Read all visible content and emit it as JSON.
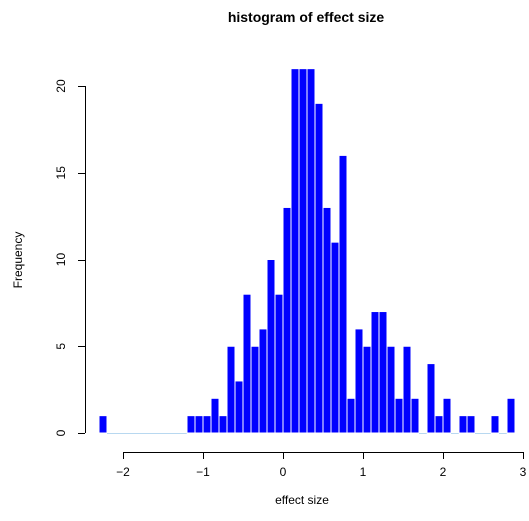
{
  "chart_data": {
    "type": "bar",
    "title": "histogram of effect size",
    "xlabel": "effect size",
    "ylabel": "Frequency",
    "bin_width": 0.1,
    "xlim": [
      -2.3,
      2.9
    ],
    "ylim": [
      0,
      21
    ],
    "x_ticks": [
      -2,
      -1,
      0,
      1,
      2,
      3
    ],
    "y_ticks": [
      0,
      5,
      10,
      15,
      20
    ],
    "bar_color": "#0000ff",
    "bar_border_color": "#ffffff",
    "bins": [
      {
        "x0": -2.3,
        "x1": -2.2,
        "count": 1
      },
      {
        "x0": -2.2,
        "x1": -2.1,
        "count": 0
      },
      {
        "x0": -2.1,
        "x1": -2.0,
        "count": 0
      },
      {
        "x0": -2.0,
        "x1": -1.9,
        "count": 0
      },
      {
        "x0": -1.9,
        "x1": -1.8,
        "count": 0
      },
      {
        "x0": -1.8,
        "x1": -1.7,
        "count": 0
      },
      {
        "x0": -1.7,
        "x1": -1.6,
        "count": 0
      },
      {
        "x0": -1.6,
        "x1": -1.5,
        "count": 0
      },
      {
        "x0": -1.5,
        "x1": -1.4,
        "count": 0
      },
      {
        "x0": -1.4,
        "x1": -1.3,
        "count": 0
      },
      {
        "x0": -1.3,
        "x1": -1.2,
        "count": 0
      },
      {
        "x0": -1.2,
        "x1": -1.1,
        "count": 1
      },
      {
        "x0": -1.1,
        "x1": -1.0,
        "count": 1
      },
      {
        "x0": -1.0,
        "x1": -0.9,
        "count": 1
      },
      {
        "x0": -0.9,
        "x1": -0.8,
        "count": 2
      },
      {
        "x0": -0.8,
        "x1": -0.7,
        "count": 1
      },
      {
        "x0": -0.7,
        "x1": -0.6,
        "count": 5
      },
      {
        "x0": -0.6,
        "x1": -0.5,
        "count": 3
      },
      {
        "x0": -0.5,
        "x1": -0.4,
        "count": 8
      },
      {
        "x0": -0.4,
        "x1": -0.3,
        "count": 5
      },
      {
        "x0": -0.3,
        "x1": -0.2,
        "count": 6
      },
      {
        "x0": -0.2,
        "x1": -0.1,
        "count": 10
      },
      {
        "x0": -0.1,
        "x1": 0.0,
        "count": 8
      },
      {
        "x0": 0.0,
        "x1": 0.1,
        "count": 13
      },
      {
        "x0": 0.1,
        "x1": 0.2,
        "count": 21
      },
      {
        "x0": 0.2,
        "x1": 0.3,
        "count": 21
      },
      {
        "x0": 0.3,
        "x1": 0.4,
        "count": 21
      },
      {
        "x0": 0.4,
        "x1": 0.5,
        "count": 19
      },
      {
        "x0": 0.5,
        "x1": 0.6,
        "count": 13
      },
      {
        "x0": 0.6,
        "x1": 0.7,
        "count": 11
      },
      {
        "x0": 0.7,
        "x1": 0.8,
        "count": 16
      },
      {
        "x0": 0.8,
        "x1": 0.9,
        "count": 2
      },
      {
        "x0": 0.9,
        "x1": 1.0,
        "count": 6
      },
      {
        "x0": 1.0,
        "x1": 1.1,
        "count": 5
      },
      {
        "x0": 1.1,
        "x1": 1.2,
        "count": 7
      },
      {
        "x0": 1.2,
        "x1": 1.3,
        "count": 7
      },
      {
        "x0": 1.3,
        "x1": 1.4,
        "count": 5
      },
      {
        "x0": 1.4,
        "x1": 1.5,
        "count": 2
      },
      {
        "x0": 1.5,
        "x1": 1.6,
        "count": 5
      },
      {
        "x0": 1.6,
        "x1": 1.7,
        "count": 2
      },
      {
        "x0": 1.7,
        "x1": 1.8,
        "count": 0
      },
      {
        "x0": 1.8,
        "x1": 1.9,
        "count": 4
      },
      {
        "x0": 1.9,
        "x1": 2.0,
        "count": 1
      },
      {
        "x0": 2.0,
        "x1": 2.1,
        "count": 2
      },
      {
        "x0": 2.1,
        "x1": 2.2,
        "count": 0
      },
      {
        "x0": 2.2,
        "x1": 2.3,
        "count": 1
      },
      {
        "x0": 2.3,
        "x1": 2.4,
        "count": 1
      },
      {
        "x0": 2.4,
        "x1": 2.5,
        "count": 0
      },
      {
        "x0": 2.5,
        "x1": 2.6,
        "count": 0
      },
      {
        "x0": 2.6,
        "x1": 2.7,
        "count": 1
      },
      {
        "x0": 2.7,
        "x1": 2.8,
        "count": 0
      },
      {
        "x0": 2.8,
        "x1": 2.9,
        "count": 2
      }
    ]
  }
}
